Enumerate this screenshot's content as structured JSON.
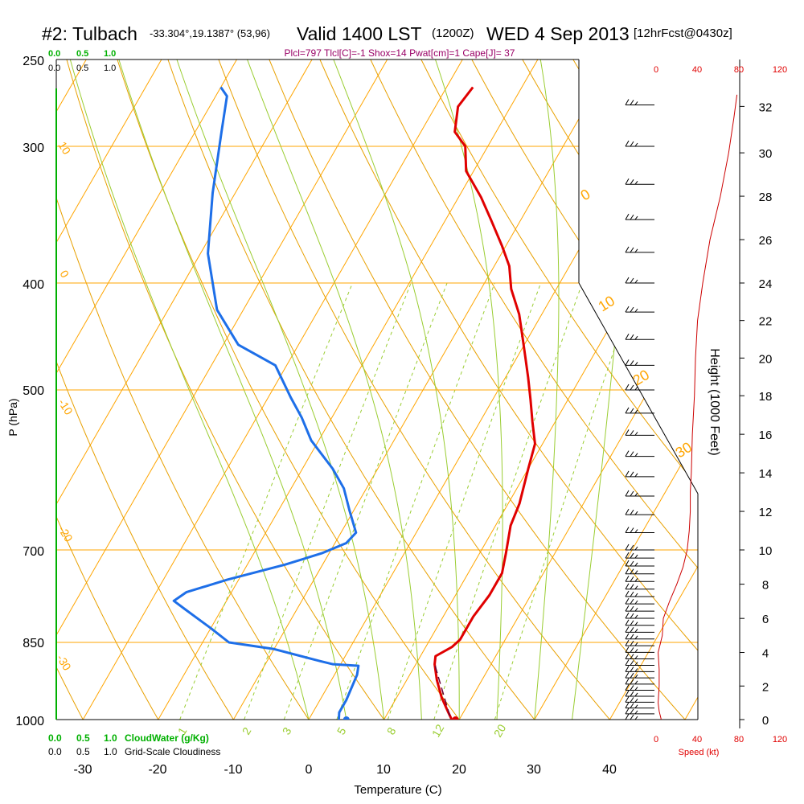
{
  "header": {
    "station": "#2: Tulbach",
    "coords": "-33.304°,19.1387° (53,96)",
    "valid_label": "Valid 1400 LST",
    "zulu": "(1200Z)",
    "date_label": "WED 4 Sep 2013",
    "forecast": "[12hrFcst@0430z]"
  },
  "indices": "Plcl=797 Tlcl[C]=-1 Shox=14 Pwat[cm]=1 Cape[J]= 37",
  "colors": {
    "isotherm": "#ffa500",
    "dry_adiabat": "#e8a000",
    "moist_adiabat": "#9acd32",
    "mixing_ratio": "#9acd32",
    "temperature": "#e00000",
    "dewpoint": "#1e6fe8",
    "parcel": "#660033",
    "cloudwater": "#00b000",
    "indices": "#990066",
    "speed": "#e00000"
  },
  "left_axis": {
    "label": "P (hPa)",
    "ticks": [
      "250",
      "300",
      "400",
      "500",
      "700",
      "850",
      "1000"
    ]
  },
  "bottom_axis": {
    "label": "Temperature (C)",
    "ticks": [
      "-30",
      "-20",
      "-10",
      "0",
      "10",
      "20",
      "30",
      "40"
    ]
  },
  "right_axis": {
    "label": "Height (1000 Feet)",
    "ticks": [
      "0",
      "2",
      "4",
      "6",
      "8",
      "10",
      "12",
      "14",
      "16",
      "18",
      "20",
      "22",
      "24",
      "26",
      "28",
      "30",
      "32"
    ]
  },
  "cloud_scale": {
    "top_green": [
      "0.0",
      "0.5",
      "1.0"
    ],
    "top_black": [
      "0.0",
      "0.5",
      "1.0"
    ],
    "bottom_green": [
      "0.0",
      "0.5",
      "1.0"
    ],
    "bottom_green_label": "CloudWater (g/Kg)",
    "bottom_black": [
      "0.0",
      "0.5",
      "1.0"
    ],
    "bottom_black_label": "Grid-Scale Cloudiness"
  },
  "speed_axis": {
    "top_ticks": [
      "0",
      "40",
      "80",
      "120"
    ],
    "bottom_ticks": [
      "0",
      "40",
      "80",
      "120"
    ],
    "label": "Speed (kt)"
  },
  "isotherm_labels": [
    "10",
    "0",
    "-10",
    "-20",
    "-30",
    "0",
    "10",
    "20",
    "30"
  ],
  "mixing_ratio_labels": [
    "1",
    "2",
    "3",
    "5",
    "8",
    "12",
    "20"
  ],
  "chart_data": {
    "type": "line",
    "title": "#2: Tulbach Valid 1400 LST (1200Z) WED 4 Sep 2013",
    "xlabel": "Temperature (C)",
    "ylabel": "P (hPa)",
    "y_scale": "log-pressure (skew-T)",
    "ylim": [
      1000,
      250
    ],
    "xlim": [
      -30,
      40
    ],
    "series": [
      {
        "name": "Temperature",
        "points": [
          [
            19,
            1000
          ],
          [
            18,
            985
          ],
          [
            16,
            955
          ],
          [
            14,
            920
          ],
          [
            12.5,
            890
          ],
          [
            12,
            875
          ],
          [
            13.5,
            858
          ],
          [
            14,
            845
          ],
          [
            14,
            805
          ],
          [
            14.5,
            770
          ],
          [
            14.5,
            735
          ],
          [
            13.5,
            705
          ],
          [
            12,
            665
          ],
          [
            11.5,
            635
          ],
          [
            10,
            590
          ],
          [
            9,
            560
          ],
          [
            7,
            535
          ],
          [
            5,
            510
          ],
          [
            3,
            487
          ],
          [
            1,
            466
          ],
          [
            -1,
            446
          ],
          [
            -3,
            427
          ],
          [
            -6,
            405
          ],
          [
            -8,
            386
          ],
          [
            -10.5,
            370
          ],
          [
            -14,
            350
          ],
          [
            -17,
            334
          ],
          [
            -21,
            316
          ],
          [
            -23,
            300
          ],
          [
            -25.5,
            291
          ],
          [
            -27,
            276
          ],
          [
            -26.5,
            265
          ]
        ]
      },
      {
        "name": "Dewpoint",
        "points": [
          [
            4,
            1000
          ],
          [
            3.5,
            985
          ],
          [
            3.5,
            960
          ],
          [
            3,
            910
          ],
          [
            2.5,
            893
          ],
          [
            -1,
            890
          ],
          [
            -3,
            884
          ],
          [
            -10,
            862
          ],
          [
            -16.5,
            850
          ],
          [
            -20,
            825
          ],
          [
            -25,
            792
          ],
          [
            -27,
            779
          ],
          [
            -26,
            765
          ],
          [
            -21.5,
            745
          ],
          [
            -15,
            722
          ],
          [
            -11,
            705
          ],
          [
            -8.5,
            690
          ],
          [
            -8,
            675
          ],
          [
            -10.5,
            645
          ],
          [
            -13,
            615
          ],
          [
            -16,
            590
          ],
          [
            -21,
            556
          ],
          [
            -24,
            530
          ],
          [
            -27,
            508
          ],
          [
            -31.5,
            475
          ],
          [
            -38,
            455
          ],
          [
            -43.5,
            423
          ],
          [
            -49,
            376
          ],
          [
            -53,
            331
          ],
          [
            -56.5,
            291
          ],
          [
            -58.5,
            270
          ],
          [
            -60,
            265
          ]
        ]
      },
      {
        "name": "Parcel",
        "points": [
          [
            18.5,
            993
          ],
          [
            12.5,
            890
          ]
        ]
      }
    ],
    "surface_points": {
      "temperature": 19.5,
      "dewpoint": 5
    },
    "height_kft_vs_pressure": [
      [
        0,
        1000
      ],
      [
        4.6,
        850
      ],
      [
        10,
        700
      ],
      [
        18.3,
        500
      ],
      [
        24,
        400
      ],
      [
        30.3,
        300
      ],
      [
        34,
        250
      ]
    ],
    "wind_speed_kt": {
      "height_kft": [
        0,
        0.5,
        1,
        2,
        3,
        4,
        4.5,
        5,
        6,
        7,
        8,
        9,
        10,
        11,
        12,
        13,
        14,
        16,
        18,
        20,
        22,
        24,
        26,
        28,
        30,
        31.5,
        32.5
      ],
      "values": [
        5,
        3,
        2,
        3,
        3,
        2,
        4,
        6,
        7,
        13,
        20,
        26,
        30,
        32,
        33,
        33,
        34,
        35,
        37,
        38,
        40,
        45,
        52,
        62,
        70,
        75,
        78
      ]
    }
  }
}
